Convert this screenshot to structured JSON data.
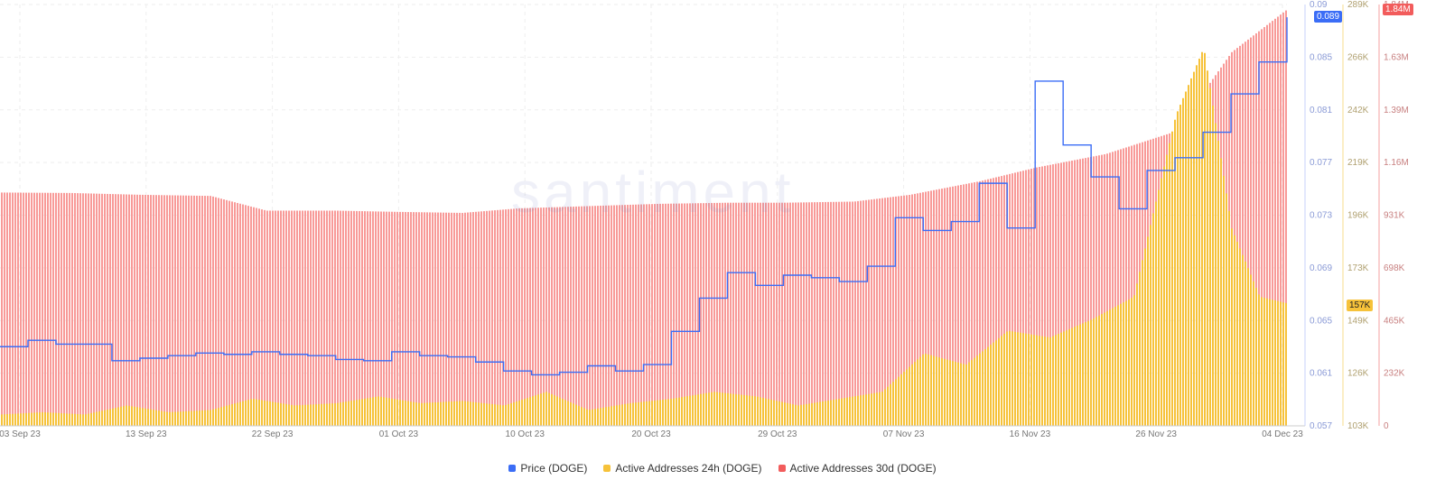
{
  "watermark": "santiment",
  "legend": [
    {
      "label": "Price (DOGE)",
      "color": "#3b6df6"
    },
    {
      "label": "Active Addresses 24h (DOGE)",
      "color": "#f6c23a"
    },
    {
      "label": "Active Addresses 30d (DOGE)",
      "color": "#f25c5c"
    }
  ],
  "badges": {
    "price_current": "0.089",
    "aa24_current": "157K",
    "aa30_current": "1.84M"
  },
  "colors": {
    "price": "#3b6df6",
    "aa24": "#f6c23a",
    "aa30": "#f25c5c",
    "aa30_fill": "#f89a98"
  },
  "chart_data": {
    "type": "bar",
    "x_range": [
      "2023-09-03",
      "2023-12-04"
    ],
    "x_tick_labels": [
      "03 Sep 23",
      "13 Sep 23",
      "22 Sep 23",
      "01 Oct 23",
      "10 Oct 23",
      "20 Oct 23",
      "29 Oct 23",
      "07 Nov 23",
      "16 Nov 23",
      "26 Nov 23",
      "04 Dec 23"
    ],
    "axes": {
      "price": {
        "ticks": [
          "0.09",
          "0.085",
          "0.081",
          "0.077",
          "0.073",
          "0.069",
          "0.065",
          "0.061",
          "0.057"
        ],
        "ylim": [
          0.057,
          0.09
        ]
      },
      "aa24": {
        "ticks": [
          "289K",
          "266K",
          "242K",
          "219K",
          "196K",
          "173K",
          "149K",
          "126K",
          "103K"
        ],
        "ylim": [
          103000,
          289000
        ]
      },
      "aa30": {
        "ticks": [
          "1.84M",
          "1.63M",
          "1.39M",
          "1.16M",
          "931K",
          "698K",
          "465K",
          "232K",
          "0"
        ],
        "ylim": [
          0,
          1860000
        ]
      }
    },
    "grid": true,
    "series": [
      {
        "name": "Price (DOGE)",
        "type": "line",
        "x": [
          "2023-09-03",
          "2023-09-05",
          "2023-09-07",
          "2023-09-09",
          "2023-09-11",
          "2023-09-13",
          "2023-09-15",
          "2023-09-17",
          "2023-09-19",
          "2023-09-21",
          "2023-09-23",
          "2023-09-25",
          "2023-09-27",
          "2023-09-29",
          "2023-10-01",
          "2023-10-03",
          "2023-10-05",
          "2023-10-07",
          "2023-10-09",
          "2023-10-11",
          "2023-10-13",
          "2023-10-15",
          "2023-10-17",
          "2023-10-19",
          "2023-10-21",
          "2023-10-23",
          "2023-10-25",
          "2023-10-27",
          "2023-10-29",
          "2023-10-31",
          "2023-11-02",
          "2023-11-04",
          "2023-11-06",
          "2023-11-08",
          "2023-11-10",
          "2023-11-12",
          "2023-11-14",
          "2023-11-16",
          "2023-11-18",
          "2023-11-20",
          "2023-11-22",
          "2023-11-24",
          "2023-11-26",
          "2023-11-28",
          "2023-11-30",
          "2023-12-02",
          "2023-12-04"
        ],
        "values": [
          0.0632,
          0.0637,
          0.0634,
          0.0634,
          0.0621,
          0.0623,
          0.0625,
          0.0627,
          0.0626,
          0.0628,
          0.0626,
          0.0625,
          0.0622,
          0.0621,
          0.0628,
          0.0625,
          0.0624,
          0.062,
          0.0613,
          0.061,
          0.0612,
          0.0617,
          0.0613,
          0.0618,
          0.0644,
          0.067,
          0.069,
          0.068,
          0.0688,
          0.0686,
          0.0683,
          0.0695,
          0.0733,
          0.0723,
          0.073,
          0.076,
          0.0725,
          0.084,
          0.079,
          0.0765,
          0.074,
          0.077,
          0.078,
          0.08,
          0.083,
          0.0855,
          0.089
        ]
      },
      {
        "name": "Active Addresses 24h (DOGE)",
        "type": "bar",
        "x": [
          "2023-09-03",
          "2023-09-06",
          "2023-09-09",
          "2023-09-12",
          "2023-09-15",
          "2023-09-18",
          "2023-09-21",
          "2023-09-24",
          "2023-09-27",
          "2023-09-30",
          "2023-10-03",
          "2023-10-06",
          "2023-10-09",
          "2023-10-12",
          "2023-10-15",
          "2023-10-18",
          "2023-10-21",
          "2023-10-24",
          "2023-10-27",
          "2023-10-30",
          "2023-11-02",
          "2023-11-05",
          "2023-11-08",
          "2023-11-11",
          "2023-11-14",
          "2023-11-17",
          "2023-11-20",
          "2023-11-23",
          "2023-11-26",
          "2023-11-28",
          "2023-11-30",
          "2023-12-02",
          "2023-12-04"
        ],
        "values": [
          108000,
          109000,
          108000,
          112000,
          109000,
          110000,
          115000,
          112000,
          113000,
          116000,
          113000,
          114000,
          112000,
          118000,
          110000,
          113000,
          115000,
          118000,
          116000,
          112000,
          115000,
          118000,
          135000,
          130000,
          145000,
          142000,
          150000,
          160000,
          240000,
          270000,
          190000,
          160000,
          157000
        ]
      },
      {
        "name": "Active Addresses 30d (DOGE)",
        "type": "bar",
        "x": [
          "2023-09-03",
          "2023-09-08",
          "2023-09-13",
          "2023-09-18",
          "2023-09-22",
          "2023-09-27",
          "2023-10-01",
          "2023-10-06",
          "2023-10-10",
          "2023-10-15",
          "2023-10-20",
          "2023-10-25",
          "2023-10-29",
          "2023-11-03",
          "2023-11-07",
          "2023-11-12",
          "2023-11-16",
          "2023-11-21",
          "2023-11-26",
          "2023-11-30",
          "2023-12-04"
        ],
        "values": [
          1030000,
          1028000,
          1020000,
          1015000,
          950000,
          950000,
          945000,
          940000,
          960000,
          970000,
          980000,
          985000,
          985000,
          990000,
          1020000,
          1080000,
          1140000,
          1200000,
          1300000,
          1650000,
          1840000
        ]
      }
    ]
  }
}
